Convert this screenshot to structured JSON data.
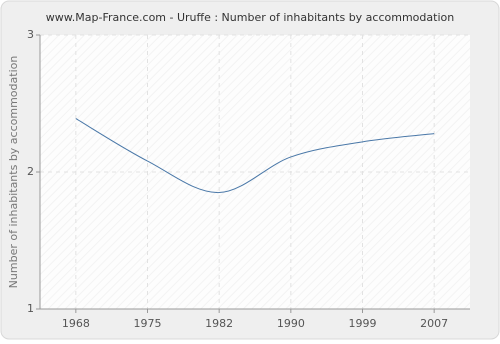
{
  "chart_data": {
    "type": "line",
    "title": "www.Map-France.com - Uruffe : Number of inhabitants by accommodation",
    "y_label": "Number of inhabitants by accommodation",
    "categories": [
      "1968",
      "1975",
      "1982",
      "1990",
      "1999",
      "2007"
    ],
    "series": [
      {
        "name": "Uruffe",
        "color": "#4a78a8",
        "values": [
          2.39,
          2.08,
          1.85,
          2.11,
          2.22,
          2.28
        ]
      }
    ],
    "ylim": [
      1,
      3
    ],
    "yticks": [
      1,
      2,
      3
    ],
    "grid": true
  }
}
